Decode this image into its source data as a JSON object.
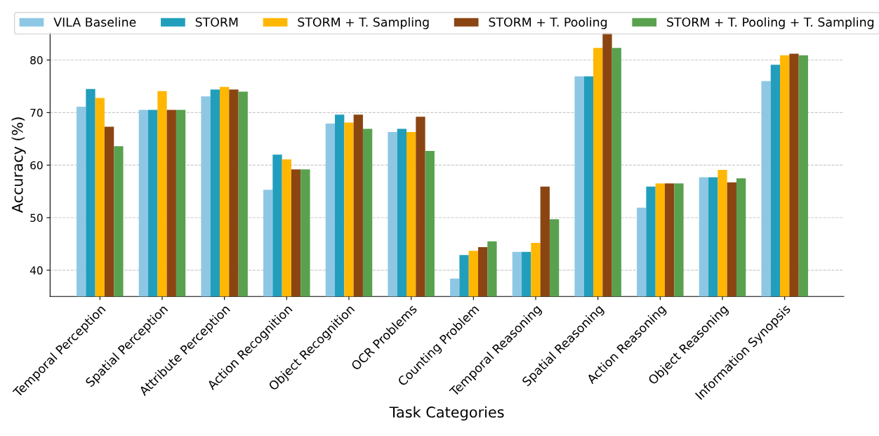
{
  "chart_data": {
    "type": "bar",
    "xlabel": "Task Categories",
    "ylabel": "Accuracy (%)",
    "categories": [
      "Temporal Perception",
      "Spatial Perception",
      "Attribute Perception",
      "Action Recognition",
      "Object Recognition",
      "OCR Problems",
      "Counting Problem",
      "Temporal Reasoning",
      "Spatial Reasoning",
      "Action Reasoning",
      "Object Reasoning",
      "Information Synopsis"
    ],
    "series": [
      {
        "name": "VILA Baseline",
        "color": "#8ec7e4",
        "values": [
          71.1,
          70.5,
          73.1,
          55.3,
          67.9,
          66.3,
          38.4,
          43.5,
          76.9,
          51.9,
          57.7,
          76.0
        ]
      },
      {
        "name": "STORM",
        "color": "#219ebc",
        "values": [
          74.5,
          70.5,
          74.4,
          62.0,
          69.6,
          66.9,
          42.9,
          43.5,
          76.9,
          55.9,
          57.7,
          79.1
        ]
      },
      {
        "name": "STORM + T. Sampling",
        "color": "#ffb703",
        "values": [
          72.8,
          74.1,
          74.9,
          61.1,
          68.1,
          66.3,
          43.7,
          45.2,
          82.3,
          56.5,
          59.1,
          80.9
        ]
      },
      {
        "name": "STORM + T. Pooling",
        "color": "#8b4513",
        "values": [
          67.3,
          70.5,
          74.4,
          59.2,
          69.6,
          69.2,
          44.4,
          55.9,
          85.2,
          56.5,
          56.7,
          81.2
        ]
      },
      {
        "name": "STORM + T. Pooling + T. Sampling",
        "color": "#59a14f",
        "values": [
          63.6,
          70.5,
          74.0,
          59.2,
          66.9,
          62.7,
          45.5,
          49.7,
          82.3,
          56.5,
          57.5,
          80.9
        ]
      }
    ],
    "ylim": [
      35,
      85.2
    ],
    "yticks": [
      40,
      50,
      60,
      70,
      80
    ],
    "grid": "y",
    "legend": "top"
  }
}
